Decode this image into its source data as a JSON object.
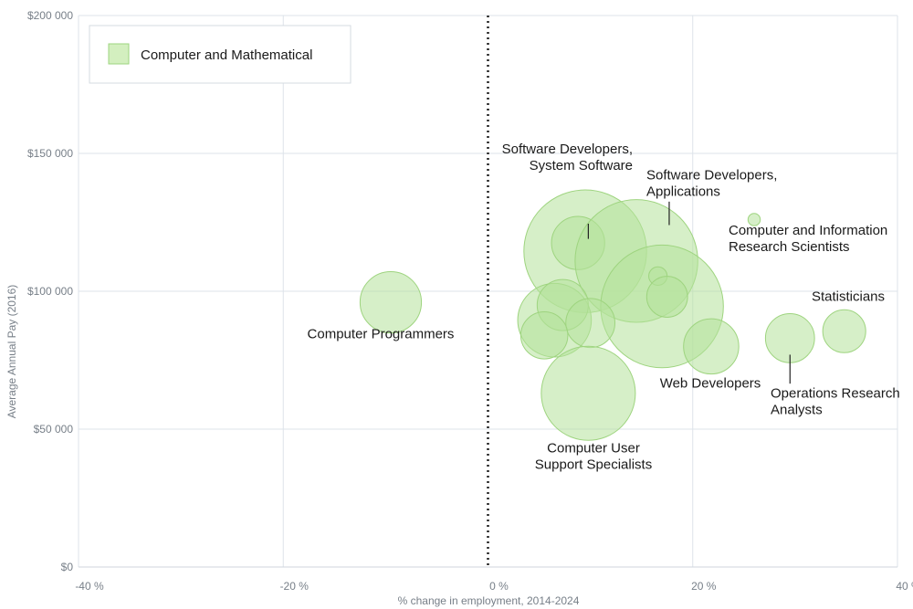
{
  "chart_data": {
    "type": "scatter",
    "title": "",
    "xlabel": "% change in employment, 2014-2024",
    "ylabel": "Average Annual Pay (2016)",
    "xlim": [
      -40,
      40
    ],
    "ylim": [
      0,
      200000
    ],
    "x_ticks": [
      -40,
      -20,
      0,
      20,
      40
    ],
    "x_tick_labels": [
      "-40 %",
      "-20 %",
      "0 %",
      "20 %",
      "40 %"
    ],
    "y_ticks": [
      0,
      50000,
      100000,
      150000,
      200000
    ],
    "y_tick_labels": [
      "$0",
      "$50 000",
      "$100 000",
      "$150 000",
      "$200 000"
    ],
    "grid": true,
    "legend": {
      "placement": "top-left",
      "entries": [
        {
          "name": "Computer and Mathematical",
          "color": "#b5e29a"
        }
      ]
    },
    "series": [
      {
        "name": "Computer and Mathematical",
        "color": "#b5e29a",
        "points": [
          {
            "x": -9.5,
            "y": 96000,
            "size": 30
          },
          {
            "x": 9.5,
            "y": 114500,
            "size": 60
          },
          {
            "x": 8.8,
            "y": 117500,
            "size": 26
          },
          {
            "x": 14.5,
            "y": 111000,
            "size": 60
          },
          {
            "x": 17.0,
            "y": 94500,
            "size": 60
          },
          {
            "x": 16.6,
            "y": 105500,
            "size": 9
          },
          {
            "x": 17.5,
            "y": 98000,
            "size": 20
          },
          {
            "x": 26.0,
            "y": 126000,
            "size": 6
          },
          {
            "x": 6.5,
            "y": 89500,
            "size": 36
          },
          {
            "x": 7.3,
            "y": 95000,
            "size": 25
          },
          {
            "x": 10.0,
            "y": 88500,
            "size": 24
          },
          {
            "x": 5.5,
            "y": 84000,
            "size": 23
          },
          {
            "x": 9.8,
            "y": 63000,
            "size": 46
          },
          {
            "x": 21.8,
            "y": 80000,
            "size": 27
          },
          {
            "x": 29.5,
            "y": 83000,
            "size": 24
          },
          {
            "x": 34.8,
            "y": 85500,
            "size": 21
          }
        ]
      }
    ],
    "annotations": [
      {
        "lines": [
          "Computer Programmers"
        ],
        "x": -10,
        "y": 83000
      },
      {
        "lines": [
          "Software Developers,",
          "System Software"
        ],
        "x": 7.5,
        "y": 150000
      },
      {
        "lines": [
          "Software Developers,",
          "Applications"
        ],
        "x": 16,
        "y": 140500
      },
      {
        "lines": [
          "Computer and Information",
          "Research Scientists"
        ],
        "x": 23.5,
        "y": 120500
      },
      {
        "lines": [
          "Statisticians"
        ],
        "x": 31.5,
        "y": 96500
      },
      {
        "lines": [
          "Web Developers"
        ],
        "x": 16,
        "y": 65000
      },
      {
        "lines": [
          "Operations Research",
          "Analysts"
        ],
        "x": 27.5,
        "y": 61500
      },
      {
        "lines": [
          "Computer User",
          "Support Specialists"
        ],
        "x": 9.5,
        "y": 41500
      }
    ]
  }
}
